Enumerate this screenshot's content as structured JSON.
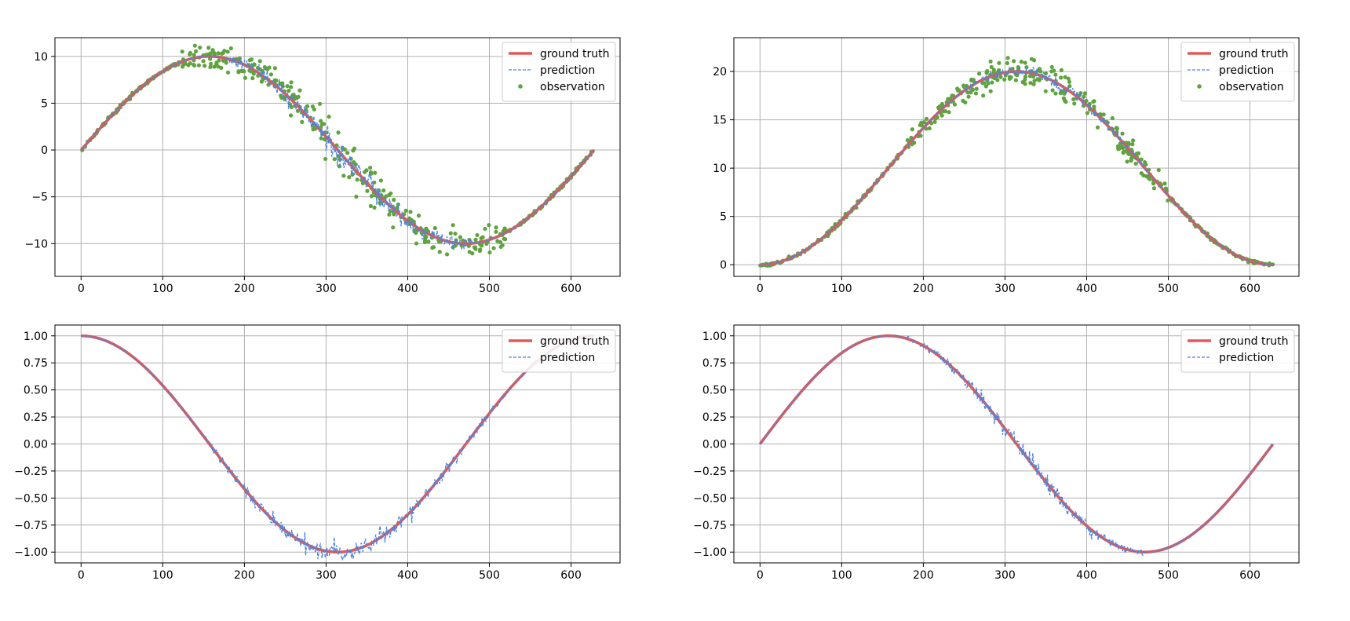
{
  "colors": {
    "ground_truth": "#e05a5a",
    "prediction": "#4a84e0",
    "observation": "#5fa33f",
    "grid": "#b0b0b0"
  },
  "chart_data": [
    {
      "type": "line",
      "title": "",
      "xlabel": "",
      "ylabel": "",
      "xlim": [
        -32,
        660
      ],
      "ylim": [
        -13.5,
        12.0
      ],
      "xticks": [
        0,
        100,
        200,
        300,
        400,
        500,
        600
      ],
      "yticks": [
        -10,
        -5,
        0,
        5,
        10
      ],
      "ytick_labels": [
        "−10",
        "−5",
        "0",
        "5",
        "10"
      ],
      "grid": true,
      "legend": "top-right",
      "series": [
        {
          "name": "ground truth",
          "style": "solid",
          "function": "10*sin(x/100)",
          "x_range": [
            0,
            628
          ]
        },
        {
          "name": "prediction",
          "style": "dashed",
          "function": "10*sin(x/100) + noise",
          "x_range": [
            0,
            628
          ],
          "noise_region": [
            180,
            480
          ],
          "noise_amp": 0.9
        },
        {
          "name": "observation",
          "style": "dots",
          "function": "10*sin(x/100) + noise",
          "x_range": [
            0,
            628
          ],
          "n_points": 520,
          "noise_region": [
            120,
            520
          ],
          "noise_amp": 1.1
        }
      ]
    },
    {
      "type": "line",
      "title": "",
      "xlabel": "",
      "ylabel": "",
      "xlim": [
        -32,
        660
      ],
      "ylim": [
        -1.2,
        23.5
      ],
      "xticks": [
        0,
        100,
        200,
        300,
        400,
        500,
        600
      ],
      "yticks": [
        0,
        5,
        10,
        15,
        20
      ],
      "ytick_labels": [
        "0",
        "5",
        "10",
        "15",
        "20"
      ],
      "grid": true,
      "legend": "top-right",
      "series": [
        {
          "name": "ground truth",
          "style": "solid",
          "function": "10*(1-cos(x/100))",
          "x_range": [
            0,
            628
          ]
        },
        {
          "name": "prediction",
          "style": "dashed",
          "function": "10*(1-cos(x/100)) + noise",
          "x_range": [
            0,
            628
          ],
          "noise_region": [
            250,
            480
          ],
          "noise_amp": 0.5
        },
        {
          "name": "observation",
          "style": "dots",
          "function": "10*(1-cos(x/100)) + noise",
          "x_range": [
            0,
            628
          ],
          "n_points": 520,
          "noise_region": [
            180,
            500
          ],
          "noise_amp": 0.9
        }
      ]
    },
    {
      "type": "line",
      "title": "",
      "xlabel": "",
      "ylabel": "",
      "xlim": [
        -32,
        660
      ],
      "ylim": [
        -1.1,
        1.1
      ],
      "xticks": [
        0,
        100,
        200,
        300,
        400,
        500,
        600
      ],
      "yticks": [
        -1.0,
        -0.75,
        -0.5,
        -0.25,
        0.0,
        0.25,
        0.5,
        0.75,
        1.0
      ],
      "ytick_labels": [
        "−1.00",
        "−0.75",
        "−0.50",
        "−0.25",
        "0.00",
        "0.25",
        "0.50",
        "0.75",
        "1.00"
      ],
      "grid": true,
      "legend": "top-right",
      "series": [
        {
          "name": "ground truth",
          "style": "solid",
          "function": "cos(x/100)",
          "x_range": [
            0,
            628
          ]
        },
        {
          "name": "prediction",
          "style": "dashed",
          "function": "cos(x/100) + noise",
          "x_range": [
            0,
            628
          ],
          "noise_region": [
            150,
            520
          ],
          "noise_amp": 0.06
        }
      ]
    },
    {
      "type": "line",
      "title": "",
      "xlabel": "",
      "ylabel": "",
      "xlim": [
        -32,
        660
      ],
      "ylim": [
        -1.1,
        1.1
      ],
      "xticks": [
        0,
        100,
        200,
        300,
        400,
        500,
        600
      ],
      "yticks": [
        -1.0,
        -0.75,
        -0.5,
        -0.25,
        0.0,
        0.25,
        0.5,
        0.75,
        1.0
      ],
      "ytick_labels": [
        "−1.00",
        "−0.75",
        "−0.50",
        "−0.25",
        "0.00",
        "0.25",
        "0.50",
        "0.75",
        "1.00"
      ],
      "grid": true,
      "legend": "top-right",
      "series": [
        {
          "name": "ground truth",
          "style": "solid",
          "function": "sin(x/100)",
          "x_range": [
            0,
            628
          ]
        },
        {
          "name": "prediction",
          "style": "dashed",
          "function": "sin(x/100) + noise",
          "x_range": [
            0,
            628
          ],
          "noise_region": [
            180,
            470
          ],
          "noise_amp": 0.06
        }
      ]
    }
  ]
}
